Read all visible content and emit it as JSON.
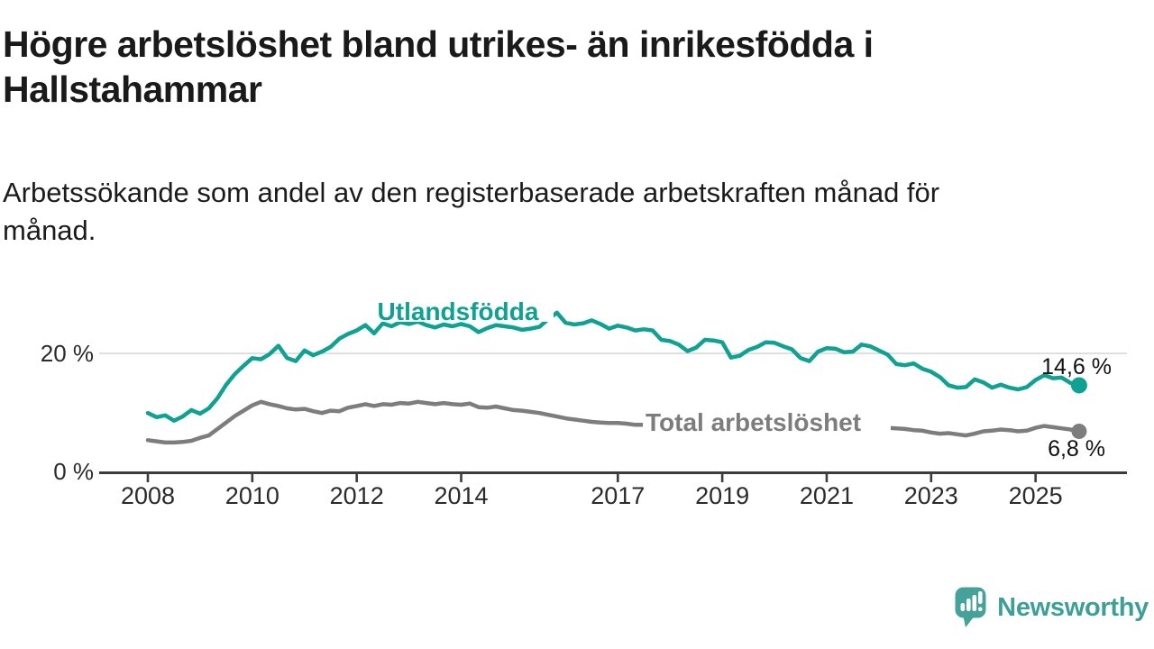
{
  "header": {
    "title": "Högre arbetslöshet bland utrikes- än inrikesfödda i\nHallstahammar",
    "subtitle": "Arbetssökande som andel av den registerbaserade arbetskraften månad för\nmånad."
  },
  "footer": {
    "brand": "Newsworthy"
  },
  "colors": {
    "foreign_line": "#0fa191",
    "total_line": "#7d7d7d",
    "grid": "#d8d8d8",
    "axis": "#3c3c3c",
    "tick_text": "#2b2b2b",
    "value_text": "#111111",
    "brand": "#3d9f97",
    "brand_icon": "#45a29a"
  },
  "chart_data": {
    "type": "line",
    "title": "Högre arbetslöshet bland utrikes- än inrikesfödda i Hallstahammar",
    "subtitle": "Arbetssökande som andel av den registerbaserade arbetskraften månad för månad.",
    "y_unit": "%",
    "x_start_year": 2008.0,
    "x_step_years": 0.1666667,
    "x_end_year": 2025.83,
    "ylim": [
      0,
      28
    ],
    "grid": "y-only",
    "x_ticks": [
      2008,
      2010,
      2012,
      2014,
      2017,
      2019,
      2021,
      2023,
      2025
    ],
    "y_ticks": [
      {
        "value": 0,
        "label": "0 %"
      },
      {
        "value": 20,
        "label": "20 %"
      }
    ],
    "series": [
      {
        "name": "Utlandsfödda",
        "end_label": "14,6 %",
        "end_value": 14.6,
        "values": [
          9.9,
          9.2,
          9.5,
          8.6,
          9.3,
          10.4,
          9.8,
          10.7,
          12.4,
          14.7,
          16.5,
          17.9,
          19.2,
          19.0,
          19.9,
          21.3,
          19.2,
          18.7,
          20.5,
          19.7,
          20.3,
          21.1,
          22.5,
          23.3,
          23.9,
          24.8,
          23.4,
          25.1,
          24.6,
          25.3,
          25.0,
          25.4,
          24.8,
          24.4,
          24.9,
          24.6,
          25.0,
          24.6,
          23.6,
          24.3,
          24.8,
          24.6,
          24.4,
          24.0,
          24.2,
          24.5,
          25.8,
          26.9,
          25.2,
          24.9,
          25.1,
          25.6,
          25.0,
          24.2,
          24.7,
          24.4,
          23.9,
          24.1,
          23.9,
          22.3,
          22.1,
          21.5,
          20.4,
          21.0,
          22.3,
          22.2,
          21.9,
          19.3,
          19.6,
          20.6,
          21.1,
          21.9,
          21.8,
          21.2,
          20.7,
          19.2,
          18.7,
          20.3,
          20.9,
          20.8,
          20.2,
          20.3,
          21.5,
          21.2,
          20.5,
          19.8,
          18.2,
          18.0,
          18.3,
          17.4,
          16.9,
          16.0,
          14.6,
          14.2,
          14.3,
          15.6,
          15.1,
          14.2,
          14.7,
          14.2,
          13.9,
          14.3,
          15.5,
          16.3,
          15.8,
          15.9,
          15.0,
          14.6
        ]
      },
      {
        "name": "Total arbetslöshet",
        "end_label": "6,8 %",
        "end_value": 6.8,
        "values": [
          5.3,
          5.1,
          4.9,
          4.9,
          5.0,
          5.2,
          5.7,
          6.1,
          7.2,
          8.3,
          9.4,
          10.3,
          11.2,
          11.8,
          11.4,
          11.1,
          10.7,
          10.5,
          10.6,
          10.2,
          9.9,
          10.3,
          10.2,
          10.8,
          11.1,
          11.4,
          11.1,
          11.4,
          11.3,
          11.6,
          11.5,
          11.8,
          11.6,
          11.4,
          11.6,
          11.4,
          11.3,
          11.5,
          10.9,
          10.8,
          11.0,
          10.7,
          10.4,
          10.3,
          10.1,
          9.9,
          9.6,
          9.3,
          9.0,
          8.8,
          8.6,
          8.4,
          8.3,
          8.2,
          8.2,
          8.1,
          7.9,
          7.9,
          7.8,
          7.7,
          7.7,
          7.6,
          7.5,
          7.5,
          7.4,
          7.4,
          7.4,
          7.3,
          7.3,
          7.2,
          7.3,
          7.4,
          7.5,
          7.9,
          8.4,
          8.6,
          8.5,
          8.3,
          8.2,
          8.0,
          7.9,
          7.7,
          7.6,
          7.5,
          7.4,
          7.4,
          7.3,
          7.2,
          7.0,
          6.9,
          6.6,
          6.4,
          6.5,
          6.3,
          6.1,
          6.4,
          6.8,
          6.9,
          7.1,
          7.0,
          6.8,
          6.9,
          7.4,
          7.7,
          7.5,
          7.3,
          7.1,
          6.8
        ]
      }
    ]
  }
}
